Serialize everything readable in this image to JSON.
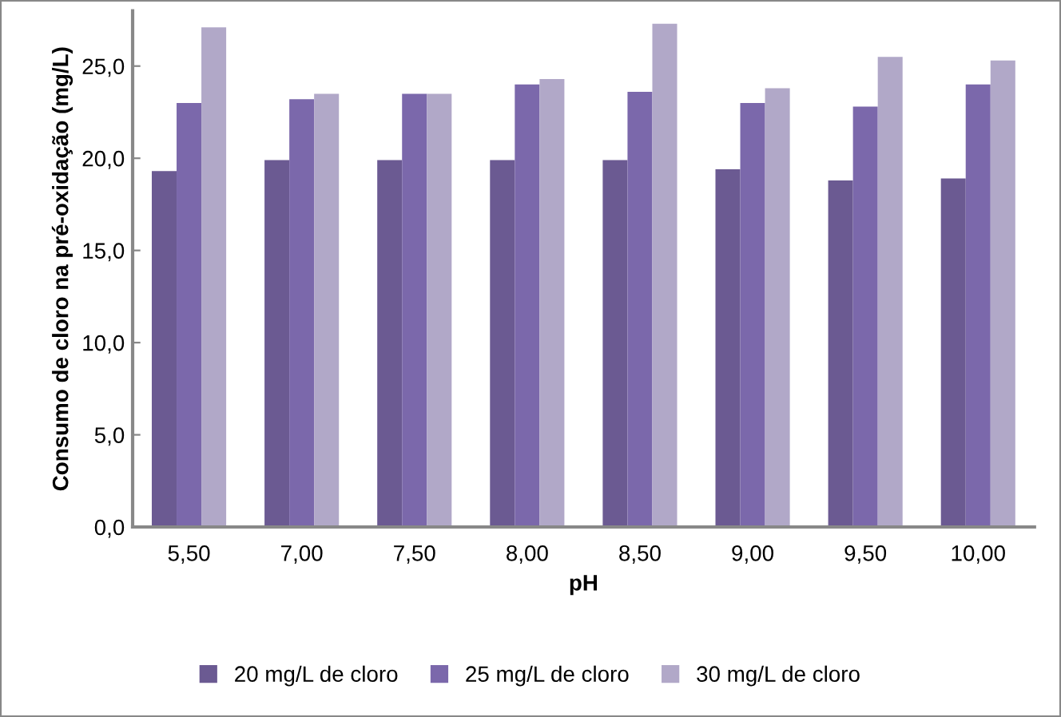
{
  "chart_data": {
    "type": "bar",
    "xlabel": "pH",
    "ylabel": "Consumo de cloro na pré-oxidação (mg/L)",
    "categories": [
      "5,50",
      "7,00",
      "7,50",
      "8,00",
      "8,50",
      "9,00",
      "9,50",
      "10,00"
    ],
    "series": [
      {
        "name": "20 mg/L de cloro",
        "color": "#6b5a92",
        "values": [
          19.3,
          19.9,
          19.9,
          19.9,
          19.9,
          19.4,
          18.8,
          18.9
        ]
      },
      {
        "name": "25 mg/L de cloro",
        "color": "#7b68ab",
        "values": [
          23.0,
          23.2,
          23.5,
          24.0,
          23.6,
          23.0,
          22.8,
          24.0
        ]
      },
      {
        "name": "30 mg/L de cloro",
        "color": "#b1a8c8",
        "values": [
          27.1,
          23.5,
          23.5,
          24.3,
          27.3,
          23.8,
          25.5,
          25.3
        ]
      }
    ],
    "ylim": [
      0,
      28
    ],
    "yticks": [
      {
        "value": 0,
        "label": "0,0"
      },
      {
        "value": 5,
        "label": "5,0"
      },
      {
        "value": 10,
        "label": "10,0"
      },
      {
        "value": 15,
        "label": "15,0"
      },
      {
        "value": 20,
        "label": "20,0"
      },
      {
        "value": 25,
        "label": "25,0"
      }
    ],
    "grid": false,
    "legend": "bottom"
  }
}
